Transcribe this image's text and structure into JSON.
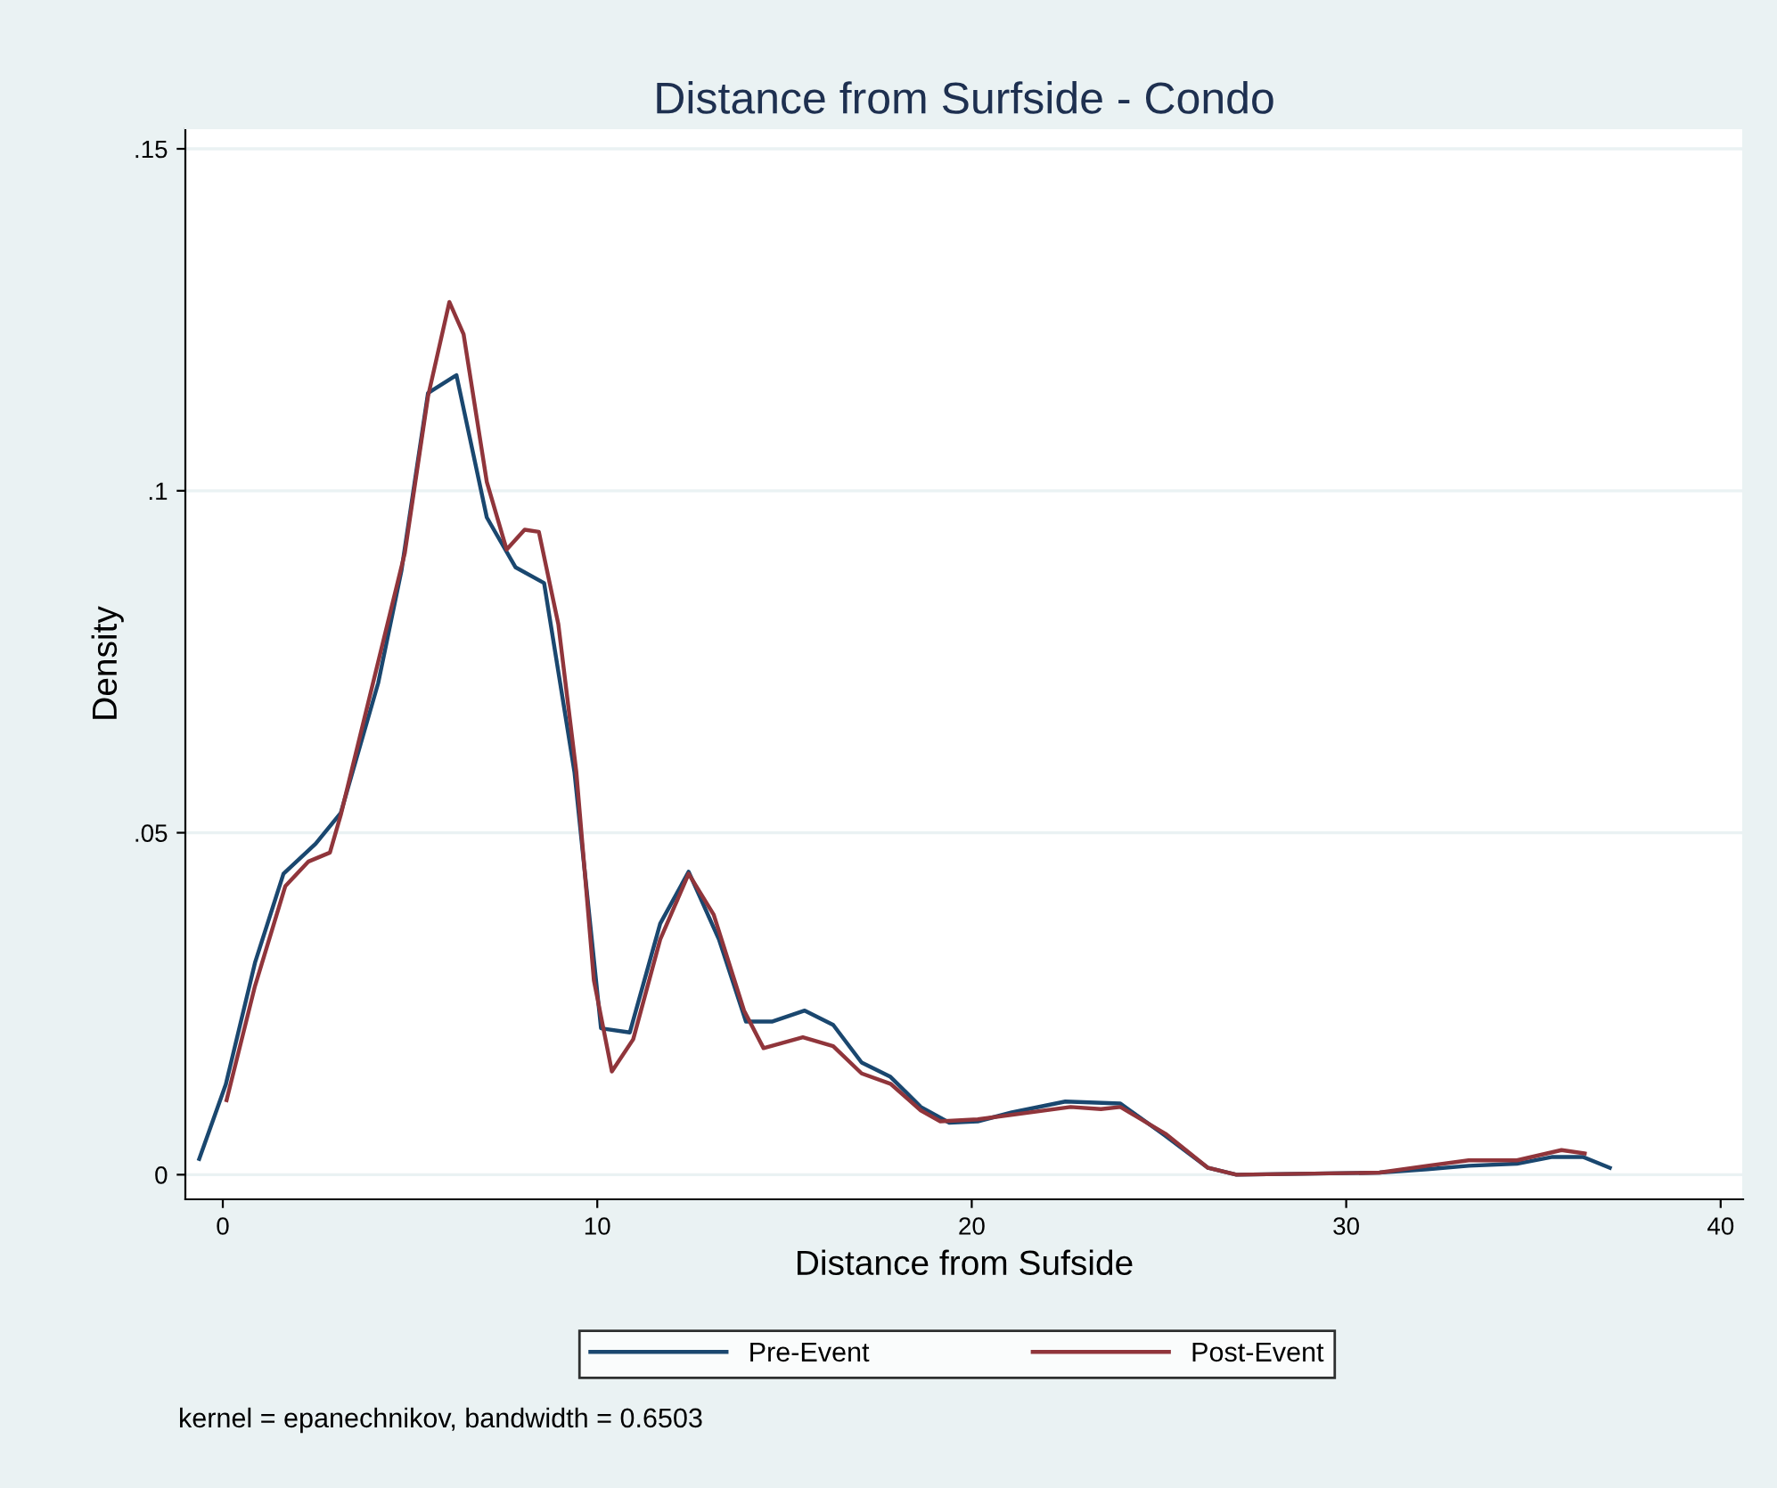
{
  "chart_data": {
    "type": "line",
    "title": "Distance from Surfside - Condo",
    "xlabel": "Distance from Sufside",
    "ylabel": "Density",
    "xlim": [
      -1.0,
      40.6
    ],
    "xticks": [
      0,
      10,
      20,
      30,
      40
    ],
    "ylim": [
      -0.0036,
      0.153
    ],
    "yticks": [
      {
        "value": 0,
        "label": "0"
      },
      {
        "value": 0.05,
        "label": ".05"
      },
      {
        "value": 0.1,
        "label": ".1"
      },
      {
        "value": 0.15,
        "label": ".15"
      }
    ],
    "grid": "y",
    "legend": "bottom",
    "line_style": "solid",
    "marker": "none",
    "annotations": [
      "kernel = epanechnikov, bandwidth = 0.6503"
    ],
    "series": [
      {
        "name": "Pre-Event",
        "color": "#1a476f",
        "x": [
          -0.63,
          0.08,
          0.86,
          1.62,
          2.48,
          3.15,
          4.15,
          4.77,
          5.48,
          6.24,
          7.05,
          7.82,
          8.58,
          9.39,
          10.1,
          10.87,
          11.68,
          12.44,
          13.25,
          13.97,
          14.68,
          15.54,
          16.3,
          17.06,
          17.83,
          18.64,
          19.4,
          20.16,
          21.07,
          22.5,
          23.97,
          25.17,
          26.31,
          27.07,
          30.89,
          32.17,
          33.27,
          34.56,
          35.51,
          36.32,
          37.04
        ],
        "values": [
          0.0023,
          0.0132,
          0.031,
          0.044,
          0.0484,
          0.0529,
          0.0719,
          0.0883,
          0.1143,
          0.1169,
          0.0961,
          0.0888,
          0.0865,
          0.0589,
          0.0214,
          0.0208,
          0.0367,
          0.0443,
          0.0344,
          0.0224,
          0.0224,
          0.024,
          0.0219,
          0.0164,
          0.0143,
          0.0099,
          0.0076,
          0.0078,
          0.0091,
          0.0107,
          0.0104,
          0.0057,
          0.001,
          0.0,
          0.0003,
          0.0008,
          0.0013,
          0.0016,
          0.0026,
          0.0026,
          0.001
        ]
      },
      {
        "name": "Post-Event",
        "color": "#90353b",
        "x": [
          0.1,
          0.86,
          1.67,
          2.29,
          2.86,
          3.15,
          4.86,
          5.48,
          6.05,
          6.43,
          7.05,
          7.58,
          8.06,
          8.44,
          8.96,
          9.44,
          9.91,
          10.39,
          10.96,
          11.68,
          12.44,
          13.11,
          13.92,
          14.44,
          15.49,
          16.3,
          17.06,
          17.83,
          18.64,
          19.16,
          20.16,
          22.64,
          23.45,
          23.97,
          25.17,
          26.31,
          27.07,
          30.89,
          32.17,
          33.27,
          34.56,
          35.75,
          36.37
        ],
        "values": [
          0.0109,
          0.0276,
          0.0422,
          0.0458,
          0.0471,
          0.0526,
          0.0909,
          0.1138,
          0.1276,
          0.1229,
          0.1013,
          0.0914,
          0.0943,
          0.094,
          0.0805,
          0.0589,
          0.0284,
          0.0151,
          0.0198,
          0.0344,
          0.044,
          0.038,
          0.024,
          0.0185,
          0.0201,
          0.0188,
          0.0148,
          0.0133,
          0.0094,
          0.0078,
          0.0081,
          0.0099,
          0.0096,
          0.0099,
          0.006,
          0.001,
          0.0,
          0.0003,
          0.0013,
          0.0021,
          0.0021,
          0.0036,
          0.0031
        ]
      }
    ]
  }
}
